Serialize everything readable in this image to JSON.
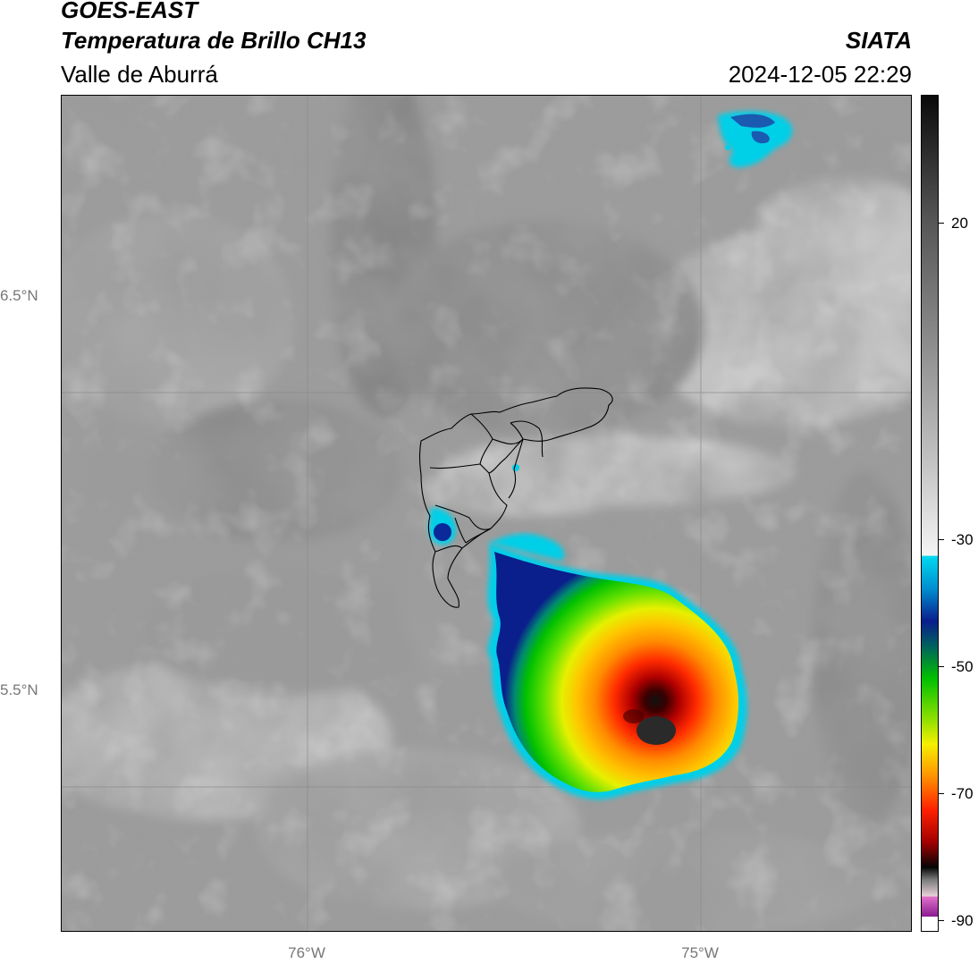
{
  "header": {
    "satellite": "GOES-EAST",
    "product": "Temperatura de Brillo CH13",
    "region": "Valle de Aburrá",
    "organization": "SIATA",
    "datetime": "2024-12-05 22:29"
  },
  "axes": {
    "lat_labels": [
      "6.5°N",
      "5.5°N"
    ],
    "lon_labels": [
      "76°W",
      "75°W"
    ]
  },
  "colorbar": {
    "tick_labels": [
      "20",
      "-30",
      "-50",
      "-70",
      "-90"
    ],
    "colors": {
      "warm_top": "#111111",
      "cold_white": "#f2f2f2",
      "cyan": "#00cfe8",
      "blue": "#0a1e8c",
      "green": "#00c000",
      "yellow": "#f5f000",
      "orange": "#ff8c00",
      "red": "#d20000",
      "black": "#050505",
      "magenta": "#c040b0"
    }
  }
}
